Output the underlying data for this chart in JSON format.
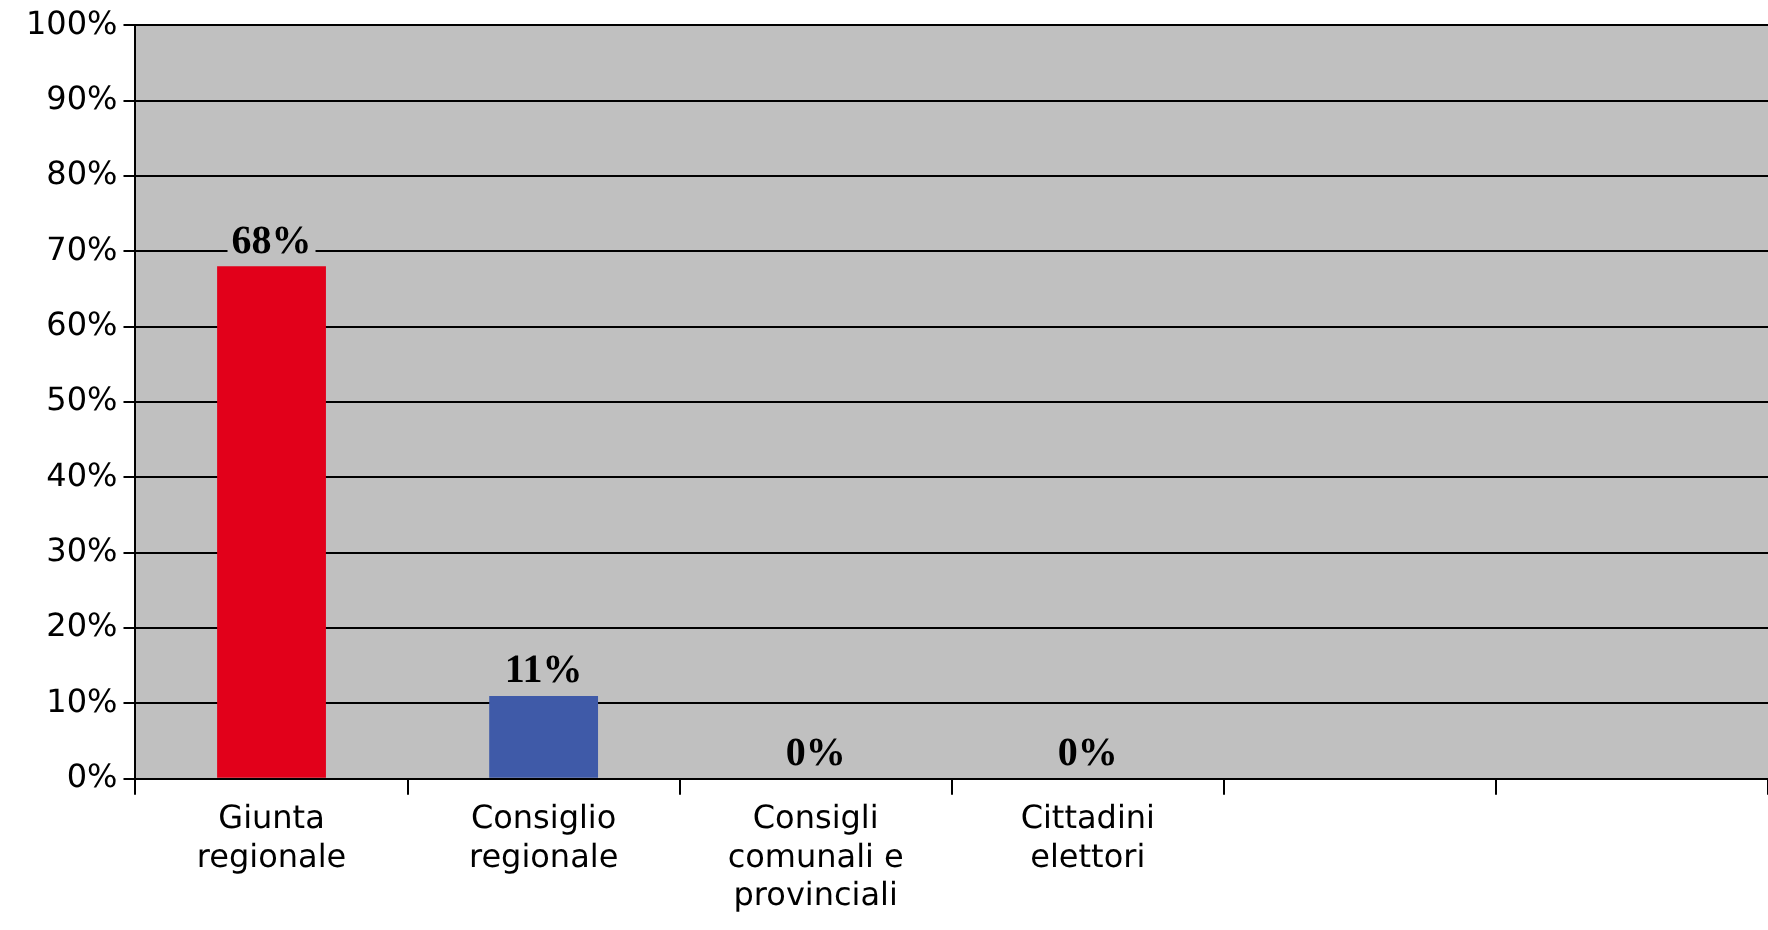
{
  "chart_data": {
    "type": "bar",
    "categories": [
      "Giunta regionale",
      "Consiglio regionale",
      "Consigli comunali e provinciali",
      "Cittadini elettori",
      null,
      null
    ],
    "values": [
      68,
      11,
      0,
      0,
      null,
      null
    ],
    "colors": [
      "#e2001a",
      "#3f5aa8",
      "#3f5aa8",
      "#3f5aa8",
      "#3f5aa8",
      "#3f5aa8"
    ],
    "value_labels": [
      "68%",
      "11%",
      "0%",
      "0%",
      null,
      null
    ],
    "ylim": [
      0,
      100
    ],
    "yticks": [
      {
        "value": 0,
        "label": "0%"
      },
      {
        "value": 10,
        "label": "10%"
      },
      {
        "value": 20,
        "label": "20%"
      },
      {
        "value": 30,
        "label": "30%"
      },
      {
        "value": 40,
        "label": "40%"
      },
      {
        "value": 50,
        "label": "50%"
      },
      {
        "value": 60,
        "label": "60%"
      },
      {
        "value": 70,
        "label": "70%"
      },
      {
        "value": 80,
        "label": "80%"
      },
      {
        "value": 90,
        "label": "90%"
      },
      {
        "value": 100,
        "label": "100%"
      }
    ],
    "grid": "y",
    "legend": false
  }
}
